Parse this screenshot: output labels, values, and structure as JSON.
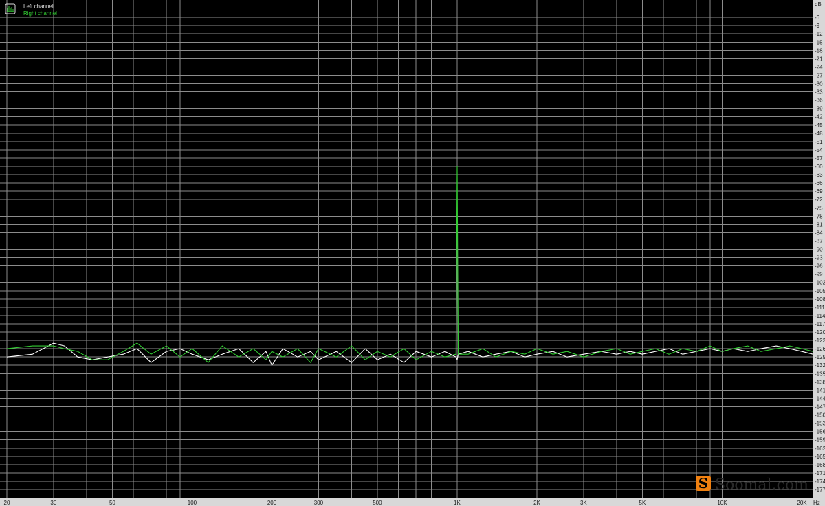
{
  "chart_data": {
    "type": "line",
    "x_scale": "log",
    "xlim": [
      20,
      22000
    ],
    "ylim": [
      -180,
      0
    ],
    "grid": true,
    "legend_placement": "top-left",
    "xlabel_unit": "Hz",
    "ylabel_unit": "dB",
    "x_ticks": [
      {
        "value": 20,
        "label": "20"
      },
      {
        "value": 30,
        "label": "30"
      },
      {
        "value": 50,
        "label": "50"
      },
      {
        "value": 100,
        "label": "100"
      },
      {
        "value": 200,
        "label": "200"
      },
      {
        "value": 300,
        "label": "300"
      },
      {
        "value": 500,
        "label": "500"
      },
      {
        "value": 1000,
        "label": "1K"
      },
      {
        "value": 2000,
        "label": "2K"
      },
      {
        "value": 3000,
        "label": "3K"
      },
      {
        "value": 5000,
        "label": "5K"
      },
      {
        "value": 10000,
        "label": "10K"
      },
      {
        "value": 20000,
        "label": "20K"
      }
    ],
    "x_gridlines": [
      20,
      30,
      40,
      50,
      60,
      70,
      80,
      90,
      100,
      200,
      300,
      400,
      500,
      600,
      700,
      800,
      900,
      1000,
      2000,
      3000,
      4000,
      5000,
      6000,
      7000,
      8000,
      9000,
      10000,
      20000
    ],
    "y_ticks": [
      -6,
      -9,
      -12,
      -15,
      -18,
      -21,
      -24,
      -27,
      -30,
      -33,
      -36,
      -39,
      -42,
      -45,
      -48,
      -51,
      -54,
      -57,
      -60,
      -63,
      -66,
      -69,
      -72,
      -75,
      -78,
      -81,
      -84,
      -87,
      -90,
      -93,
      -96,
      -99,
      -102,
      -105,
      -108,
      -111,
      -114,
      -117,
      -120,
      -123,
      -126,
      -129,
      -132,
      -135,
      -138,
      -141,
      -144,
      -147,
      -150,
      -153,
      -156,
      -159,
      -162,
      -165,
      -168,
      -171,
      -174,
      -177
    ],
    "x": [
      20,
      25,
      30,
      33,
      37,
      42,
      48,
      55,
      62,
      70,
      80,
      90,
      100,
      115,
      130,
      150,
      170,
      190,
      200,
      220,
      250,
      280,
      300,
      350,
      400,
      450,
      500,
      560,
      630,
      700,
      800,
      900,
      990,
      1000,
      1010,
      1100,
      1250,
      1400,
      1600,
      1800,
      2000,
      2300,
      2600,
      3000,
      3500,
      4000,
      4500,
      5000,
      5600,
      6300,
      7100,
      8000,
      9000,
      10000,
      11000,
      12500,
      14000,
      16000,
      18000,
      20000,
      22000
    ],
    "series": [
      {
        "name": "Left channel",
        "color": "#ffffff",
        "values": [
          -129,
          -128,
          -124,
          -125,
          -129,
          -130,
          -129,
          -128,
          -126,
          -131,
          -127,
          -126,
          -128,
          -130,
          -128,
          -126,
          -131,
          -127,
          -132,
          -126,
          -129,
          -127,
          -130,
          -127,
          -131,
          -126,
          -130,
          -128,
          -131,
          -127,
          -129,
          -127,
          -129,
          -130,
          -128,
          -127,
          -129,
          -128,
          -127,
          -129,
          -128,
          -127,
          -129,
          -128,
          -127,
          -128,
          -127,
          -128,
          -127,
          -126,
          -128,
          -127,
          -126,
          -127,
          -126,
          -127,
          -126,
          -125,
          -126,
          -127,
          -128
        ]
      },
      {
        "name": "Right channel",
        "color": "#33cc33",
        "values": [
          -126,
          -125,
          -125,
          -126,
          -127,
          -130,
          -130,
          -127,
          -124,
          -128,
          -125,
          -129,
          -126,
          -131,
          -125,
          -129,
          -126,
          -130,
          -127,
          -129,
          -126,
          -131,
          -126,
          -129,
          -125,
          -130,
          -127,
          -129,
          -126,
          -130,
          -127,
          -129,
          -128,
          -60,
          -128,
          -128,
          -126,
          -129,
          -127,
          -128,
          -126,
          -128,
          -127,
          -129,
          -127,
          -126,
          -128,
          -127,
          -126,
          -128,
          -126,
          -127,
          -125,
          -127,
          -126,
          -125,
          -127,
          -126,
          -125,
          -126,
          -127
        ]
      }
    ]
  },
  "watermark": {
    "text": "Soomal.com",
    "logo_letter": "S",
    "logo_color": "#f08010"
  },
  "colors": {
    "background": "#000000",
    "grid": "#8c8c8c",
    "axis_panel": "#d8d8d8"
  }
}
